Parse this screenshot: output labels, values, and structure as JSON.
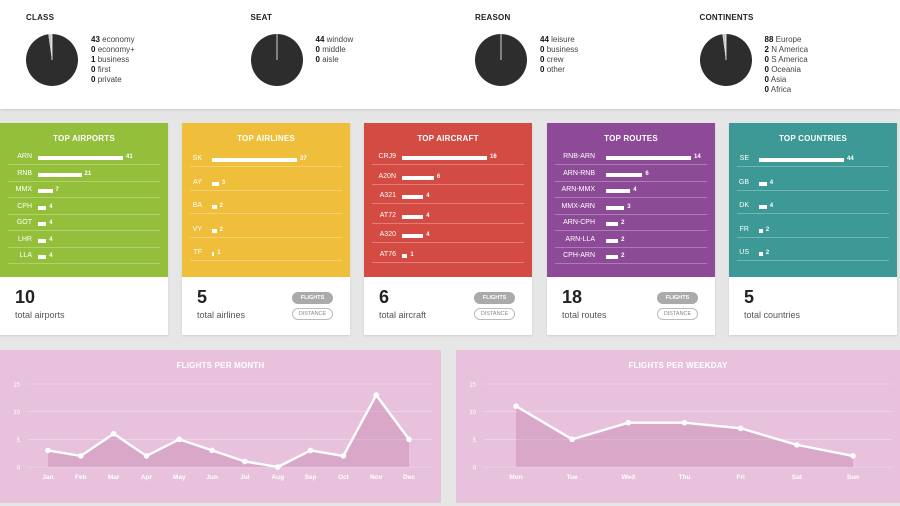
{
  "summary": [
    {
      "title": "CLASS",
      "items": [
        {
          "count": "43",
          "label": "economy"
        },
        {
          "count": "0",
          "label": "economy+"
        },
        {
          "count": "1",
          "label": "business"
        },
        {
          "count": "0",
          "label": "first"
        },
        {
          "count": "0",
          "label": "private"
        }
      ],
      "slices": [
        43,
        1
      ]
    },
    {
      "title": "SEAT",
      "items": [
        {
          "count": "44",
          "label": "window"
        },
        {
          "count": "0",
          "label": "middle"
        },
        {
          "count": "0",
          "label": "aisle"
        }
      ],
      "slices": [
        44
      ]
    },
    {
      "title": "REASON",
      "items": [
        {
          "count": "44",
          "label": "leisure"
        },
        {
          "count": "0",
          "label": "business"
        },
        {
          "count": "0",
          "label": "crew"
        },
        {
          "count": "0",
          "label": "other"
        }
      ],
      "slices": [
        44
      ]
    },
    {
      "title": "CONTINENTS",
      "items": [
        {
          "count": "88",
          "label": "Europe"
        },
        {
          "count": "2",
          "label": "N America"
        },
        {
          "count": "0",
          "label": "S America"
        },
        {
          "count": "0",
          "label": "Oceania"
        },
        {
          "count": "0",
          "label": "Asia"
        },
        {
          "count": "0",
          "label": "Africa"
        }
      ],
      "slices": [
        88,
        2
      ]
    }
  ],
  "cards": [
    {
      "key": "airports",
      "title": "TOP AIRPORTS",
      "color": "#93bf3b",
      "max": 41,
      "rows": [
        {
          "label": "ARN",
          "value": 41
        },
        {
          "label": "RNB",
          "value": 21
        },
        {
          "label": "MMX",
          "value": 7
        },
        {
          "label": "CPH",
          "value": 4
        },
        {
          "label": "GOT",
          "value": 4
        },
        {
          "label": "LHR",
          "value": 4
        },
        {
          "label": "LLA",
          "value": 4
        }
      ],
      "total": "10",
      "total_label": "total airports",
      "buttons": false
    },
    {
      "key": "airlines",
      "title": "TOP AIRLINES",
      "color": "#efbe3a",
      "max": 37,
      "rows": [
        {
          "label": "SK",
          "value": 37
        },
        {
          "label": "AY",
          "value": 3
        },
        {
          "label": "BA",
          "value": 2
        },
        {
          "label": "VY",
          "value": 2
        },
        {
          "label": "TF",
          "value": 1
        }
      ],
      "total": "5",
      "total_label": "total airlines",
      "buttons": true
    },
    {
      "key": "aircraft",
      "title": "TOP AIRCRAFT",
      "color": "#d44b43",
      "max": 16,
      "rows": [
        {
          "label": "CRJ9",
          "value": 16
        },
        {
          "label": "A20N",
          "value": 6
        },
        {
          "label": "A321",
          "value": 4
        },
        {
          "label": "AT72",
          "value": 4
        },
        {
          "label": "A320",
          "value": 4
        },
        {
          "label": "AT76",
          "value": 1
        }
      ],
      "total": "6",
      "total_label": "total aircraft",
      "buttons": true
    },
    {
      "key": "routes",
      "title": "TOP ROUTES",
      "color": "#8d4a97",
      "max": 14,
      "rows": [
        {
          "label": "RNB-ARN",
          "value": 14
        },
        {
          "label": "ARN-RNB",
          "value": 6
        },
        {
          "label": "ARN-MMX",
          "value": 4
        },
        {
          "label": "MMX-ARN",
          "value": 3
        },
        {
          "label": "ARN-CPH",
          "value": 2
        },
        {
          "label": "ARN-LLA",
          "value": 2
        },
        {
          "label": "CPH-ARN",
          "value": 2
        }
      ],
      "total": "18",
      "total_label": "total routes",
      "buttons": true
    },
    {
      "key": "countries",
      "title": "TOP COUNTRIES",
      "color": "#3c9996",
      "max": 44,
      "rows": [
        {
          "label": "SE",
          "value": 44
        },
        {
          "label": "GB",
          "value": 4
        },
        {
          "label": "DK",
          "value": 4
        },
        {
          "label": "FR",
          "value": 2
        },
        {
          "label": "US",
          "value": 2
        }
      ],
      "total": "5",
      "total_label": "total countries",
      "buttons": false
    }
  ],
  "buttons": {
    "flights": "FLIGHTS",
    "distance": "DISTANCE"
  },
  "chart_data": [
    {
      "type": "area",
      "title": "FLIGHTS PER MONTH",
      "categories": [
        "Jan",
        "Feb",
        "Mar",
        "Apr",
        "May",
        "Jun",
        "Jul",
        "Aug",
        "Sep",
        "Oct",
        "Nov",
        "Dec"
      ],
      "values": [
        3,
        2,
        6,
        2,
        5,
        3,
        1,
        0,
        3,
        2,
        13,
        5
      ],
      "yticks": [
        0,
        5,
        10,
        15
      ],
      "ylim": [
        0,
        15
      ],
      "grid": true
    },
    {
      "type": "area",
      "title": "FLIGHTS PER WEEKDAY",
      "categories": [
        "Mon",
        "Tue",
        "Wed",
        "Thu",
        "Fri",
        "Sat",
        "Sun"
      ],
      "values": [
        11,
        5,
        8,
        8,
        7,
        4,
        2
      ],
      "yticks": [
        0,
        5,
        10,
        15
      ],
      "ylim": [
        0,
        15
      ],
      "grid": true
    }
  ]
}
